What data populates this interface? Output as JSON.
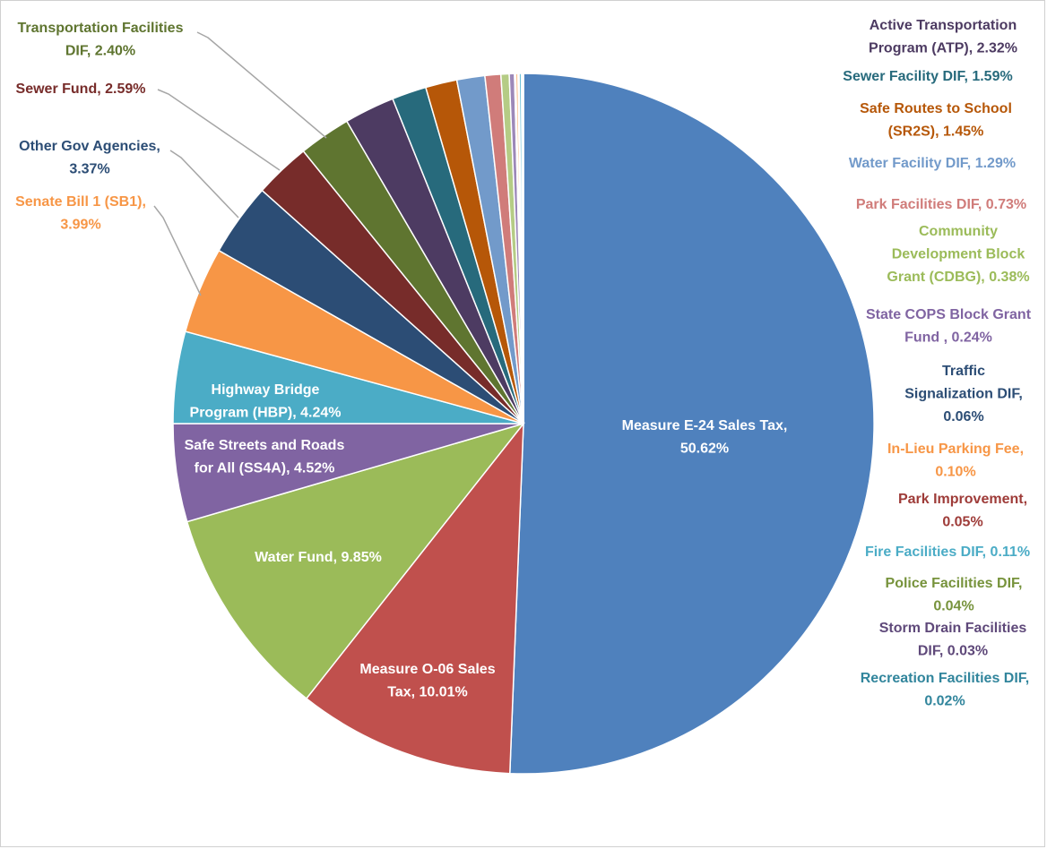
{
  "chart_data": {
    "type": "pie",
    "title": "",
    "unit": "%",
    "slices": [
      {
        "name": "Measure E-24 Sales Tax",
        "value": 50.62,
        "color": "#4F81BD",
        "label": [
          "Measure E-24 Sales Tax,",
          "50.62%"
        ]
      },
      {
        "name": "Measure O-06 Sales Tax",
        "value": 10.01,
        "color": "#C0504D",
        "label": [
          "Measure O-06 Sales",
          "Tax, 10.01%"
        ]
      },
      {
        "name": "Water Fund",
        "value": 9.85,
        "color": "#9BBB59",
        "label": [
          "Water Fund, 9.85%"
        ]
      },
      {
        "name": "Safe Streets and Roads for All (SS4A)",
        "value": 4.52,
        "color": "#8064A2",
        "label": [
          "Safe Streets and Roads",
          "for All (SS4A), 4.52%"
        ]
      },
      {
        "name": "Highway Bridge Program (HBP)",
        "value": 4.24,
        "color": "#4BACC6",
        "label": [
          "Highway Bridge",
          "Program (HBP), 4.24%"
        ]
      },
      {
        "name": "Senate Bill 1 (SB1)",
        "value": 3.99,
        "color": "#F79646",
        "label": [
          "Senate Bill 1 (SB1),",
          "3.99%"
        ]
      },
      {
        "name": "Other Gov Agencies",
        "value": 3.37,
        "color": "#2C4D75",
        "label": [
          "Other Gov Agencies,",
          "3.37%"
        ]
      },
      {
        "name": "Sewer Fund",
        "value": 2.59,
        "color": "#772C2A",
        "label": [
          "Sewer Fund, 2.59%"
        ]
      },
      {
        "name": "Transportation Facilities DIF",
        "value": 2.4,
        "color": "#5F7530",
        "label": [
          "Transportation  Facilities",
          "DIF, 2.40%"
        ]
      },
      {
        "name": "Active Transportation Program (ATP)",
        "value": 2.32,
        "color": "#4D3B62",
        "label": [
          "Active Transportation",
          "Program (ATP), 2.32%"
        ]
      },
      {
        "name": "Sewer Facility DIF",
        "value": 1.59,
        "color": "#276A7C",
        "label": [
          "Sewer Facility DIF, 1.59%"
        ]
      },
      {
        "name": "Safe Routes to School (SR2S)",
        "value": 1.45,
        "color": "#B65708",
        "label": [
          "Safe Routes to School",
          "(SR2S), 1.45%"
        ]
      },
      {
        "name": "Water Facility DIF",
        "value": 1.29,
        "color": "#729ACA",
        "label": [
          "Water Facility DIF, 1.29%"
        ]
      },
      {
        "name": "Park Facilities DIF",
        "value": 0.73,
        "color": "#D07C7A",
        "label": [
          "Park Facilities DIF, 0.73%"
        ]
      },
      {
        "name": "Community Development Block Grant (CDBG)",
        "value": 0.38,
        "color": "#B5CC85",
        "label": [
          "Community",
          "Development Block",
          "Grant (CDBG), 0.38%"
        ]
      },
      {
        "name": "State COPS Block Grant Fund",
        "value": 0.24,
        "color": "#9C88B8",
        "label": [
          "State COPS Block Grant",
          "Fund , 0.24%"
        ]
      },
      {
        "name": "Traffic Signalization DIF",
        "value": 0.06,
        "color": "#3A679C",
        "label": [
          "Traffic",
          "Signalization DIF,",
          "0.06%"
        ]
      },
      {
        "name": "In-Lieu Parking Fee",
        "value": 0.1,
        "color": "#F9AB6B",
        "label": [
          "In-Lieu Parking Fee,",
          "0.10%"
        ]
      },
      {
        "name": "Park Improvement",
        "value": 0.05,
        "color": "#9E3B38",
        "label": [
          "Park Improvement,",
          "0.05%"
        ]
      },
      {
        "name": "Fire Facilities DIF",
        "value": 0.11,
        "color": "#6FC3DA",
        "label": [
          "Fire Facilities DIF, 0.11%"
        ]
      },
      {
        "name": "Police Facilities DIF",
        "value": 0.04,
        "color": "#7E9C40",
        "label": [
          "Police Facilities DIF,",
          "0.04%"
        ]
      },
      {
        "name": "Storm Drain Facilities DIF",
        "value": 0.03,
        "color": "#664F84",
        "label": [
          "Storm Drain Facilities",
          "DIF, 0.03%"
        ]
      },
      {
        "name": "Recreation Facilities DIF",
        "value": 0.02,
        "color": "#348EA6",
        "label": [
          "Recreation Facilities DIF,",
          "0.02%"
        ]
      }
    ],
    "label_colors": {
      "Transportation Facilities DIF": "#5F7530",
      "Sewer Fund": "#772C2A",
      "Other Gov Agencies": "#2C4D75",
      "Senate Bill 1 (SB1)": "#F79646",
      "Active Transportation Program (ATP)": "#4D3B62",
      "Sewer Facility DIF": "#276A7C",
      "Safe Routes to School (SR2S)": "#B65708",
      "Water Facility DIF": "#729ACA",
      "Park Facilities DIF": "#D07C7A",
      "Community Development Block Grant (CDBG)": "#9BBB59",
      "State COPS Block Grant Fund": "#8064A2",
      "Traffic Signalization DIF": "#2C4D75",
      "In-Lieu Parking Fee": "#F79646",
      "Park Improvement": "#9E3B38",
      "Fire Facilities DIF": "#4BACC6",
      "Police Facilities DIF": "#77933C",
      "Storm Drain Facilities DIF": "#5F497A",
      "Recreation Facilities DIF": "#31859C"
    },
    "legend": "none"
  }
}
